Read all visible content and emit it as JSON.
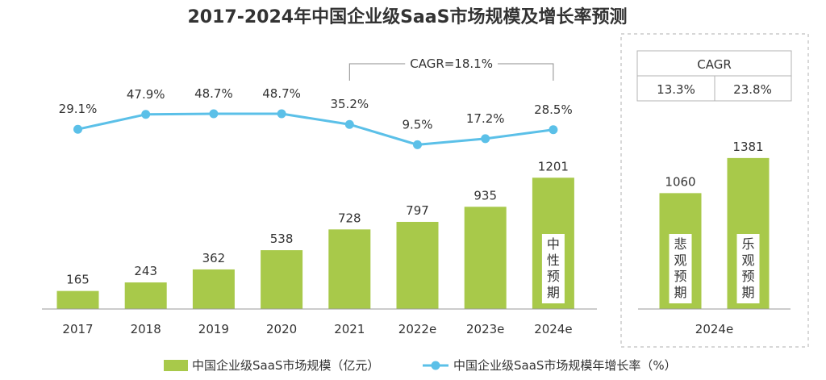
{
  "chart_data": {
    "type": "bar",
    "title": "2017-2024年中国企业级SaaS市场规模及增长率预测",
    "categories": [
      "2017",
      "2018",
      "2019",
      "2020",
      "2021",
      "2022e",
      "2023e",
      "2024e"
    ],
    "series": [
      {
        "name": "中国企业级SaaS市场规模（亿元）",
        "type": "bar",
        "values": [
          165,
          243,
          362,
          538,
          728,
          797,
          935,
          1201
        ],
        "value_labels": [
          "165",
          "243",
          "362",
          "538",
          "728",
          "797",
          "935",
          "1201"
        ]
      },
      {
        "name": "中国企业级SaaS市场规模年增长率（%）",
        "type": "line",
        "values": [
          29.1,
          47.9,
          48.7,
          48.7,
          35.2,
          9.5,
          17.2,
          28.5
        ],
        "value_labels": [
          "29.1%",
          "47.9%",
          "48.7%",
          "48.7%",
          "35.2%",
          "9.5%",
          "17.2%",
          "28.5%"
        ]
      }
    ],
    "cagr_annotation": "CAGR=18.1%",
    "bar_note": "中性预期",
    "scenario_panel": {
      "category": "2024e",
      "cagr_header": "CAGR",
      "cagr_values": [
        "13.3%",
        "23.8%"
      ],
      "bars": [
        {
          "name": "悲观预期",
          "value": 1060,
          "value_label": "1060"
        },
        {
          "name": "乐观预期",
          "value": 1381,
          "value_label": "1381"
        }
      ]
    },
    "colors": {
      "bar": "#A8C94A",
      "line": "#5BC0E8",
      "text": "#333333",
      "border": "#B3B3B3",
      "axis": "#999999"
    }
  }
}
